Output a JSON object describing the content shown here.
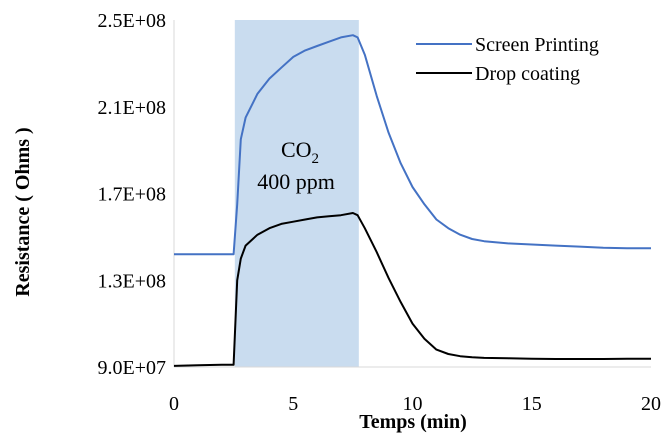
{
  "chart_data": {
    "type": "line",
    "xlabel": "Temps (min)",
    "ylabel": "Resistance ( Ohms )",
    "xlim": [
      0,
      20
    ],
    "ylim": [
      90000000,
      250000000
    ],
    "x_ticks": [
      "0",
      "5",
      "10",
      "15",
      "20"
    ],
    "x_tick_values": [
      0,
      5,
      10,
      15,
      20
    ],
    "y_ticks": [
      "9.0E+07",
      "1.3E+08",
      "1.7E+08",
      "2.1E+08",
      "2.5E+08"
    ],
    "y_tick_values": [
      90000000,
      130000000,
      170000000,
      210000000,
      250000000
    ],
    "grid": false,
    "legend_position": "top-right",
    "shaded_region": {
      "x_start": 2.55,
      "x_end": 7.75,
      "color": "#c9dcef",
      "label_line1": "CO",
      "label_subscript": "2",
      "label_line2": "400 ppm"
    },
    "series": [
      {
        "name": "Screen Printing",
        "color": "#4472c4",
        "x": [
          0,
          1,
          2,
          2.5,
          2.65,
          2.8,
          3,
          3.5,
          4,
          4.5,
          5,
          5.5,
          6,
          6.5,
          7,
          7.5,
          7.7,
          8,
          8.5,
          9,
          9.5,
          10,
          10.5,
          11,
          11.5,
          12,
          12.5,
          13,
          14,
          15,
          16,
          17,
          18,
          19,
          20
        ],
        "y": [
          142000000,
          142000000,
          142000000,
          142000000,
          165000000,
          195000000,
          205000000,
          216000000,
          223000000,
          228000000,
          233000000,
          236000000,
          238000000,
          240000000,
          242000000,
          243000000,
          242000000,
          234000000,
          215000000,
          198000000,
          184000000,
          173000000,
          165000000,
          158000000,
          154000000,
          151000000,
          149000000,
          148000000,
          147000000,
          146500000,
          146000000,
          145500000,
          145000000,
          144800000,
          144800000
        ]
      },
      {
        "name": "Drop coating",
        "color": "#000000",
        "x": [
          0,
          1,
          2,
          2.5,
          2.65,
          2.8,
          3,
          3.5,
          4,
          4.5,
          5,
          5.5,
          6,
          6.5,
          7,
          7.5,
          7.7,
          8,
          8.5,
          9,
          9.5,
          10,
          10.5,
          11,
          11.5,
          12,
          12.5,
          13,
          14,
          15,
          16,
          17,
          18,
          19,
          20
        ],
        "y": [
          90500000,
          90800000,
          91000000,
          91000000,
          130000000,
          140000000,
          146000000,
          151000000,
          154000000,
          156000000,
          157000000,
          158000000,
          159000000,
          159500000,
          160000000,
          161000000,
          160000000,
          154000000,
          143000000,
          131000000,
          120000000,
          110000000,
          103000000,
          98000000,
          96000000,
          95000000,
          94500000,
          94200000,
          94000000,
          93800000,
          93700000,
          93700000,
          93700000,
          93800000,
          93800000
        ]
      }
    ]
  }
}
